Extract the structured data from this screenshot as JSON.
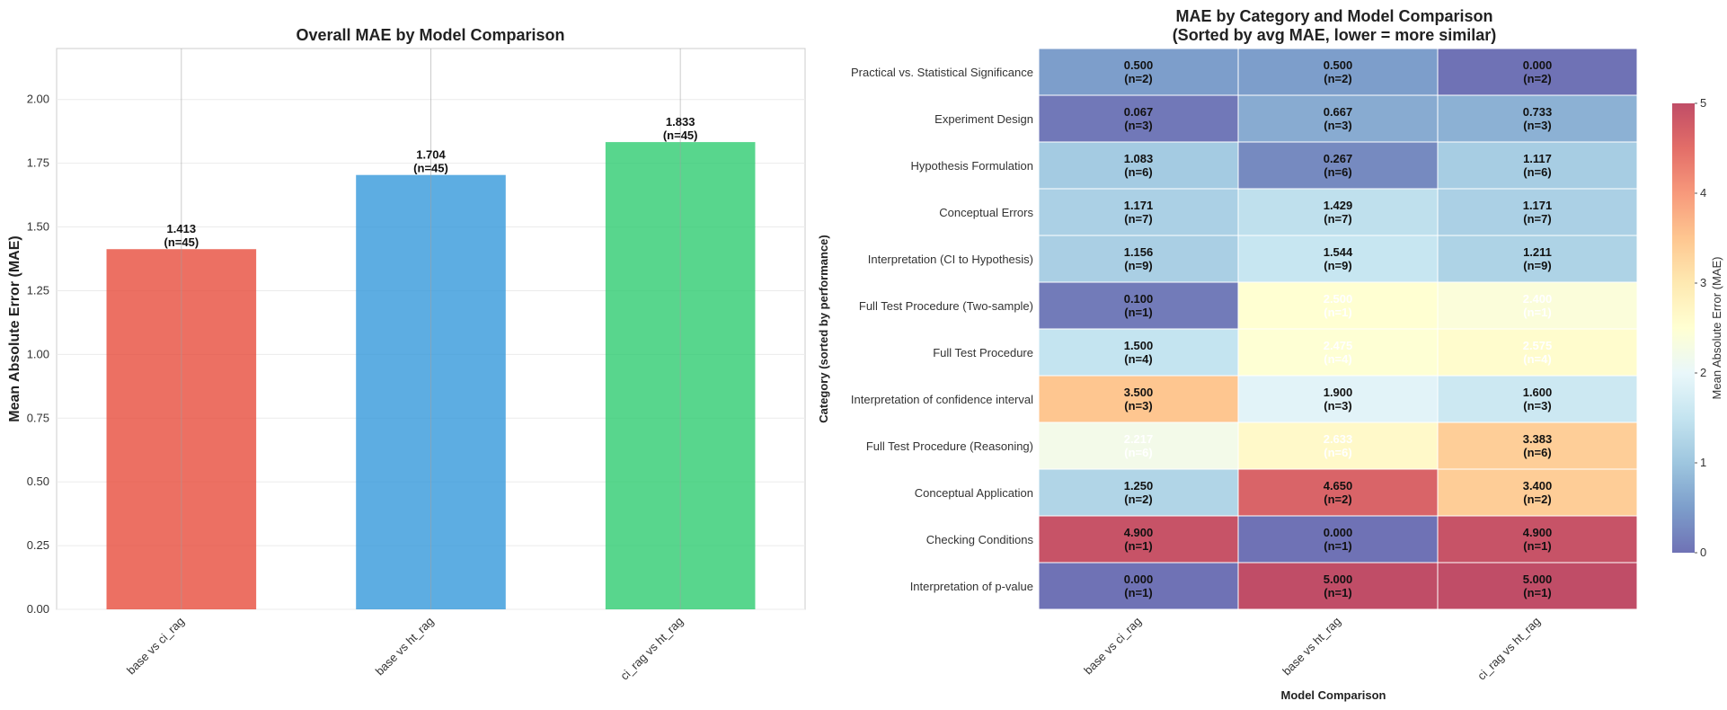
{
  "chart_data": [
    {
      "type": "bar",
      "title": "Overall MAE by Model Comparison",
      "xlabel": "",
      "ylabel": "Mean Absolute Error (MAE)",
      "categories": [
        "base vs ci_rag",
        "base vs ht_rag",
        "ci_rag vs ht_rag"
      ],
      "values": [
        1.413,
        1.704,
        1.833
      ],
      "value_labels": [
        "1.413\n(n=45)",
        "1.704\n(n=45)",
        "1.833\n(n=45)"
      ],
      "colors": [
        "#e74c3c",
        "#3498db",
        "#2ecc71"
      ],
      "ylim": [
        0,
        2.2
      ],
      "yticks": [
        0.0,
        0.25,
        0.5,
        0.75,
        1.0,
        1.25,
        1.5,
        1.75,
        2.0
      ],
      "ytick_labels": [
        "0.00",
        "0.25",
        "0.50",
        "0.75",
        "1.00",
        "1.25",
        "1.50",
        "1.75",
        "2.00"
      ],
      "grid": true
    },
    {
      "type": "heatmap",
      "title": "MAE by Category and Model Comparison",
      "subtitle": "(Sorted by avg MAE, lower = more similar)",
      "xlabel": "Model Comparison",
      "ylabel": "Category (sorted by performance)",
      "columns": [
        "base vs ci_rag",
        "base vs ht_rag",
        "ci_rag vs ht_rag"
      ],
      "rows": [
        "Practical vs. Statistical Significance",
        "Experiment Design",
        "Hypothesis Formulation",
        "Conceptual Errors",
        "Interpretation (CI to Hypothesis)",
        "Full Test Procedure (Two-sample)",
        "Full Test Procedure",
        "Interpretation of confidence interval",
        "Full Test Procedure (Reasoning)",
        "Conceptual Application",
        "Checking Conditions",
        "Interpretation of p-value"
      ],
      "values": [
        [
          0.5,
          0.5,
          0.0
        ],
        [
          0.067,
          0.667,
          0.733
        ],
        [
          1.083,
          0.267,
          1.117
        ],
        [
          1.171,
          1.429,
          1.171
        ],
        [
          1.156,
          1.544,
          1.211
        ],
        [
          0.1,
          2.5,
          2.4
        ],
        [
          1.5,
          2.475,
          2.575
        ],
        [
          3.5,
          1.9,
          1.6
        ],
        [
          2.217,
          2.633,
          3.383
        ],
        [
          1.25,
          4.65,
          3.4
        ],
        [
          4.9,
          0.0,
          4.9
        ],
        [
          0.0,
          5.0,
          5.0
        ]
      ],
      "cell_labels": [
        [
          "0.500\n(n=2)",
          "0.500\n(n=2)",
          "0.000\n(n=2)"
        ],
        [
          "0.067\n(n=3)",
          "0.667\n(n=3)",
          "0.733\n(n=3)"
        ],
        [
          "1.083\n(n=6)",
          "0.267\n(n=6)",
          "1.117\n(n=6)"
        ],
        [
          "1.171\n(n=7)",
          "1.429\n(n=7)",
          "1.171\n(n=7)"
        ],
        [
          "1.156\n(n=9)",
          "1.544\n(n=9)",
          "1.211\n(n=9)"
        ],
        [
          "0.100\n(n=1)",
          "2.500\n(n=1)",
          "2.400\n(n=1)"
        ],
        [
          "1.500\n(n=4)",
          "2.475\n(n=4)",
          "2.575\n(n=4)"
        ],
        [
          "3.500\n(n=3)",
          "1.900\n(n=3)",
          "1.600\n(n=3)"
        ],
        [
          "2.217\n(n=6)",
          "2.633\n(n=6)",
          "3.383\n(n=6)"
        ],
        [
          "1.250\n(n=2)",
          "4.650\n(n=2)",
          "3.400\n(n=2)"
        ],
        [
          "4.900\n(n=1)",
          "0.000\n(n=1)",
          "4.900\n(n=1)"
        ],
        [
          "0.000\n(n=1)",
          "5.000\n(n=1)",
          "5.000\n(n=1)"
        ]
      ],
      "colormap": "RdYlBu_r",
      "vmin": 0,
      "vmax": 5,
      "colorbar_label": "Mean Absolute Error (MAE)",
      "colorbar_ticks": [
        0,
        1,
        2,
        3,
        4,
        5
      ],
      "colorbar_tick_labels": [
        "0",
        "1",
        "2",
        "3",
        "4",
        "5"
      ]
    }
  ]
}
